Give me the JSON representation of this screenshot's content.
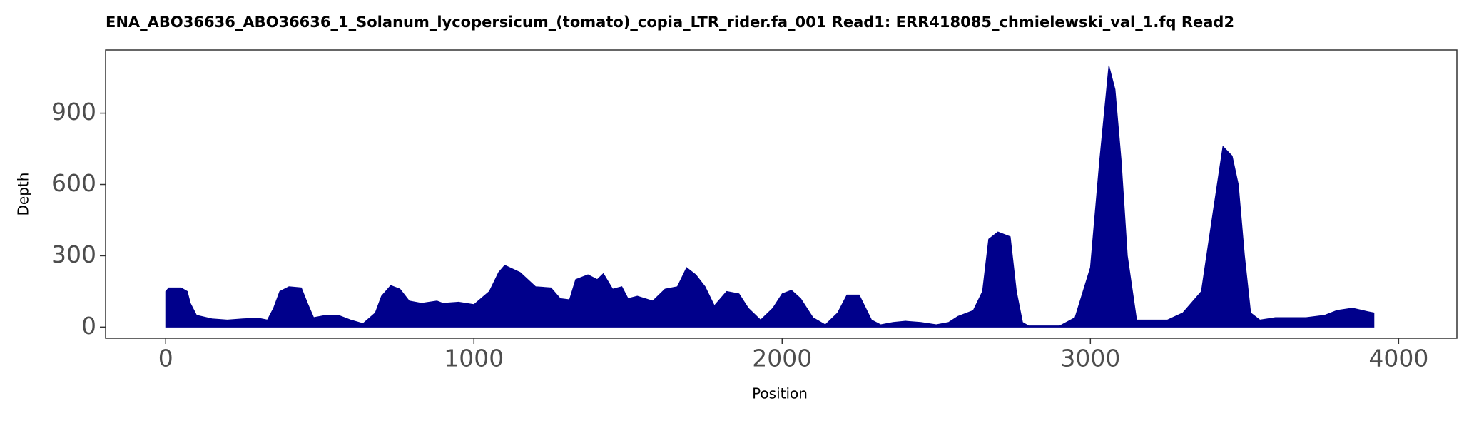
{
  "chart_data": {
    "type": "area",
    "title": "ENA_ABO36636_ABO36636_1_Solanum_lycopersicum_(tomato)_copia_LTR_rider.fa_001   Read1: ERR418085_chmielewski_val_1.fq   Read2",
    "x_label": "Position",
    "y_label": "Depth",
    "x": [
      0,
      10,
      50,
      70,
      80,
      100,
      150,
      200,
      250,
      300,
      330,
      350,
      370,
      400,
      440,
      460,
      480,
      520,
      560,
      600,
      640,
      680,
      700,
      730,
      760,
      790,
      830,
      880,
      900,
      950,
      1000,
      1050,
      1080,
      1100,
      1150,
      1200,
      1250,
      1280,
      1310,
      1330,
      1370,
      1400,
      1420,
      1450,
      1480,
      1500,
      1530,
      1580,
      1620,
      1660,
      1690,
      1720,
      1750,
      1780,
      1820,
      1860,
      1890,
      1930,
      1970,
      2000,
      2030,
      2060,
      2100,
      2140,
      2180,
      2210,
      2250,
      2290,
      2320,
      2360,
      2400,
      2450,
      2500,
      2540,
      2570,
      2620,
      2650,
      2670,
      2700,
      2740,
      2760,
      2780,
      2800,
      2900,
      2950,
      3000,
      3030,
      3060,
      3080,
      3100,
      3120,
      3150,
      3200,
      3250,
      3300,
      3360,
      3400,
      3430,
      3460,
      3480,
      3500,
      3520,
      3550,
      3600,
      3700,
      3760,
      3800,
      3850,
      3900,
      3920
    ],
    "series": [
      {
        "name": "Depth",
        "color": "#00008b",
        "values": [
          150,
          165,
          165,
          150,
          100,
          50,
          35,
          30,
          35,
          38,
          30,
          80,
          150,
          170,
          165,
          100,
          40,
          50,
          50,
          30,
          15,
          60,
          130,
          175,
          160,
          110,
          100,
          110,
          100,
          105,
          95,
          150,
          230,
          260,
          230,
          170,
          165,
          120,
          115,
          200,
          220,
          200,
          225,
          160,
          170,
          120,
          130,
          110,
          160,
          170,
          250,
          220,
          170,
          90,
          150,
          140,
          80,
          30,
          80,
          140,
          155,
          120,
          40,
          10,
          60,
          135,
          135,
          30,
          10,
          20,
          25,
          20,
          10,
          20,
          45,
          70,
          150,
          370,
          400,
          380,
          150,
          20,
          5,
          5,
          40,
          250,
          700,
          1100,
          1000,
          700,
          300,
          30,
          30,
          30,
          60,
          150,
          500,
          760,
          720,
          600,
          300,
          60,
          30,
          40,
          40,
          50,
          70,
          80,
          65,
          60
        ]
      }
    ],
    "xlim": [
      -195,
      4189
    ],
    "ylim": [
      -47,
      1166
    ],
    "xticks": [
      0,
      1000,
      2000,
      3000,
      4000
    ],
    "yticks": [
      0,
      300,
      600,
      900
    ],
    "grid": false
  }
}
